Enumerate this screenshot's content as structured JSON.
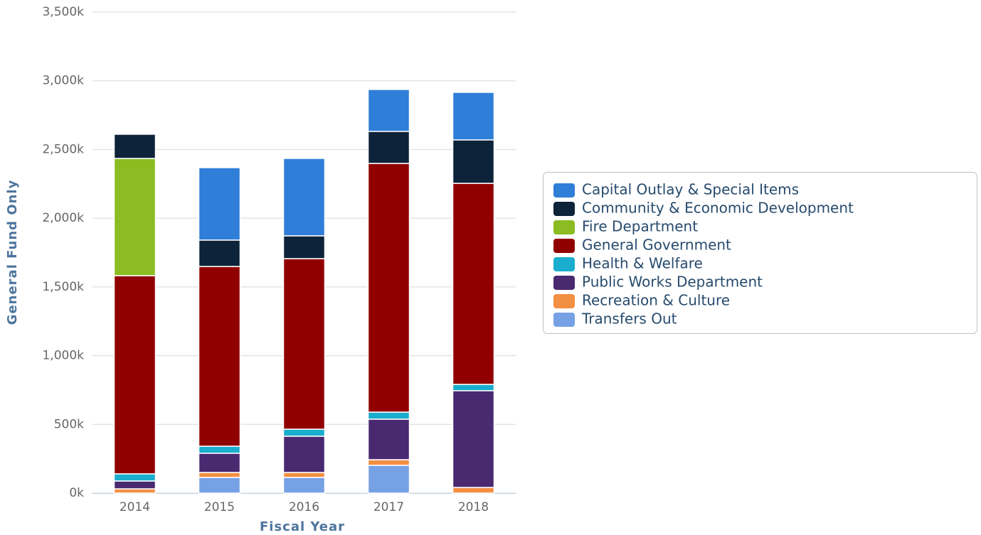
{
  "chart_data": {
    "type": "stacked_bar",
    "x_label": "Fiscal Year",
    "y_label": "General Fund Only",
    "categories": [
      "2014",
      "2015",
      "2016",
      "2017",
      "2018"
    ],
    "series": [
      {
        "name": "Capital Outlay & Special Items",
        "color": "#2f7ed8",
        "values": [
          0,
          527,
          563,
          305,
          346
        ]
      },
      {
        "name": "Community & Economic Development",
        "color": "#0d233a",
        "values": [
          176,
          192,
          166,
          233,
          316
        ]
      },
      {
        "name": "Fire Department",
        "color": "#8bbc21",
        "values": [
          853,
          0,
          0,
          0,
          0
        ]
      },
      {
        "name": "General Government",
        "color": "#910000",
        "values": [
          1442,
          1308,
          1241,
          1810,
          1463
        ]
      },
      {
        "name": "Health & Welfare",
        "color": "#1aadce",
        "values": [
          52,
          51,
          51,
          51,
          46
        ]
      },
      {
        "name": "Public Works Department",
        "color": "#492970",
        "values": [
          57,
          140,
          264,
          295,
          704
        ]
      },
      {
        "name": "Recreation & Culture",
        "color": "#f28f43",
        "values": [
          31,
          36,
          36,
          41,
          41
        ]
      },
      {
        "name": "Transfers Out",
        "color": "#77a1e5",
        "values": [
          0,
          114,
          114,
          202,
          0
        ]
      }
    ],
    "ylim": [
      0,
      3500
    ],
    "yticks": [
      {
        "value": 0,
        "label": "0k"
      },
      {
        "value": 500,
        "label": "500k"
      },
      {
        "value": 1000,
        "label": "1,000k"
      },
      {
        "value": 1500,
        "label": "1,500k"
      },
      {
        "value": 2000,
        "label": "2,000k"
      },
      {
        "value": 2500,
        "label": "2,500k"
      },
      {
        "value": 3000,
        "label": "3,000k"
      },
      {
        "value": 3500,
        "label": "3,500k"
      }
    ],
    "grid": true,
    "legend": "right"
  }
}
